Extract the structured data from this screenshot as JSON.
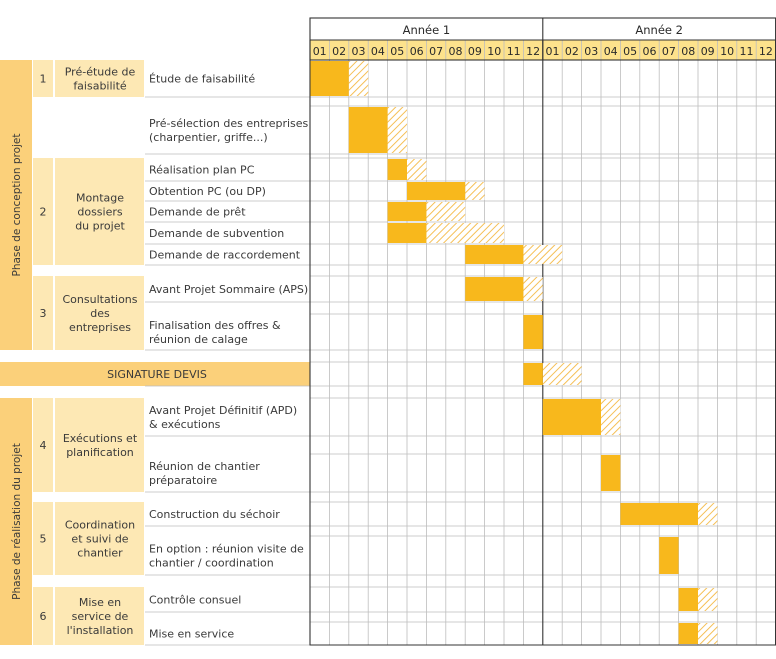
{
  "chart_data": {
    "type": "gantt",
    "years": [
      "Année 1",
      "Année 2"
    ],
    "months": [
      "01",
      "02",
      "03",
      "04",
      "05",
      "06",
      "07",
      "08",
      "09",
      "10",
      "11",
      "12",
      "01",
      "02",
      "03",
      "04",
      "05",
      "06",
      "07",
      "08",
      "09",
      "10",
      "11",
      "12"
    ],
    "phases": [
      {
        "label": "Phase de conception projet"
      },
      {
        "label": "Phase de réalisation du projet"
      }
    ],
    "milestone": {
      "label": "SIGNATURE DEVIS"
    },
    "groups": [
      {
        "num": "1",
        "title": [
          "Pré-étude de",
          "faisabilité"
        ]
      },
      {
        "num": "2",
        "title": [
          "Montage",
          "dossiers",
          "du projet"
        ]
      },
      {
        "num": "3",
        "title": [
          "Consultations",
          "des",
          "entreprises"
        ]
      },
      {
        "num": "4",
        "title": [
          "Exécutions et",
          "planification"
        ]
      },
      {
        "num": "5",
        "title": [
          "Coordination",
          "et suivi de",
          "chantier"
        ]
      },
      {
        "num": "6",
        "title": [
          "Mise en",
          "service de",
          "l'installation"
        ]
      }
    ],
    "tasks": [
      {
        "label": [
          "Étude de faisabilité"
        ],
        "start": 1,
        "end": 2,
        "margin_end": 3
      },
      {
        "label": [
          "Pré-sélection des entreprises",
          "(charpentier, griffe...)"
        ],
        "start": 3,
        "end": 4,
        "margin_end": 5
      },
      {
        "label": [
          "Réalisation plan PC"
        ],
        "start": 5,
        "end": 5,
        "margin_end": 6
      },
      {
        "label": [
          "Obtention PC (ou DP)"
        ],
        "start": 6,
        "end": 8,
        "margin_end": 9
      },
      {
        "label": [
          "Demande de prêt"
        ],
        "start": 5,
        "end": 6,
        "margin_end": 8
      },
      {
        "label": [
          "Demande de subvention"
        ],
        "start": 5,
        "end": 6,
        "margin_end": 10
      },
      {
        "label": [
          "Demande de raccordement"
        ],
        "start": 9,
        "end": 11,
        "margin_end": 13
      },
      {
        "label": [
          "Avant Projet Sommaire (APS)"
        ],
        "start": 9,
        "end": 11,
        "margin_end": 12
      },
      {
        "label": [
          "Finalisation des offres &",
          "réunion de calage"
        ],
        "start": 12,
        "end": 12,
        "margin_end": 12
      },
      {
        "label": [],
        "start": 12,
        "end": 12,
        "margin_end": 14
      },
      {
        "label": [
          "Avant Projet Définitif (APD)",
          "& exécutions"
        ],
        "start": 13,
        "end": 15,
        "margin_end": 16
      },
      {
        "label": [
          "Réunion de chantier",
          "préparatoire"
        ],
        "start": 16,
        "end": 16,
        "margin_end": 16
      },
      {
        "label": [
          "Construction du séchoir"
        ],
        "start": 17,
        "end": 20,
        "margin_end": 21
      },
      {
        "label": [
          "En option : réunion visite de",
          "chantier / coordination"
        ],
        "start": 19,
        "end": 19,
        "margin_end": 19
      },
      {
        "label": [
          "Contrôle consuel"
        ],
        "start": 20,
        "end": 20,
        "margin_end": 21
      },
      {
        "label": [
          "Mise en service"
        ],
        "start": 20,
        "end": 20,
        "margin_end": 21
      }
    ],
    "colors": {
      "bar": "#f8b81c",
      "group_bg": "#fde8b4",
      "phase_bg": "#fbd07a",
      "hatch": "#f5c057",
      "grid": "#bdbdbd",
      "frame": "#333333"
    }
  }
}
